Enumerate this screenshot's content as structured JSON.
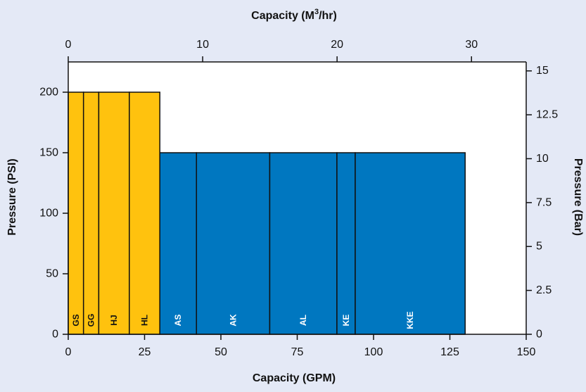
{
  "chart_data": {
    "type": "bar",
    "title": "",
    "xlabel": "Capacity (GPM)",
    "ylabel": "Pressure (PSI)",
    "x2label_pre": "Capacity (M",
    "x2label_sup": "3",
    "x2label_post": "/hr)",
    "y2label": "Pressure (Bar)",
    "xlim": [
      0,
      150
    ],
    "ylim": [
      0,
      225
    ],
    "x2lim": [
      0,
      34.07
    ],
    "y2lim": [
      0,
      15.51
    ],
    "xticks": [
      "0",
      "25",
      "50",
      "75",
      "100",
      "125",
      "150"
    ],
    "yticks": [
      "0",
      "50",
      "100",
      "150",
      "200"
    ],
    "x2ticks": [
      "0",
      "10",
      "20",
      "30"
    ],
    "y2ticks": [
      "0",
      "2.5",
      "5",
      "7.5",
      "10",
      "12.5",
      "15"
    ],
    "grid": false,
    "colors": {
      "gold": "#ffc20e",
      "blue": "#0077c0",
      "background": "#e4e9f6",
      "plot_area": "#ffffff"
    },
    "bars": [
      {
        "label": "GS",
        "x_start": 0,
        "x_end": 5,
        "value": 200,
        "color": "gold"
      },
      {
        "label": "GG",
        "x_start": 5,
        "x_end": 10,
        "value": 200,
        "color": "gold"
      },
      {
        "label": "HJ",
        "x_start": 10,
        "x_end": 20,
        "value": 200,
        "color": "gold"
      },
      {
        "label": "HL",
        "x_start": 20,
        "x_end": 30,
        "value": 200,
        "color": "gold"
      },
      {
        "label": "AS",
        "x_start": 30,
        "x_end": 42,
        "value": 150,
        "color": "blue"
      },
      {
        "label": "AK",
        "x_start": 42,
        "x_end": 66,
        "value": 150,
        "color": "blue"
      },
      {
        "label": "AL",
        "x_start": 66,
        "x_end": 88,
        "value": 150,
        "color": "blue"
      },
      {
        "label": "KE",
        "x_start": 88,
        "x_end": 94,
        "value": 150,
        "color": "blue"
      },
      {
        "label": "KKE",
        "x_start": 94,
        "x_end": 130,
        "value": 150,
        "color": "blue"
      }
    ]
  }
}
